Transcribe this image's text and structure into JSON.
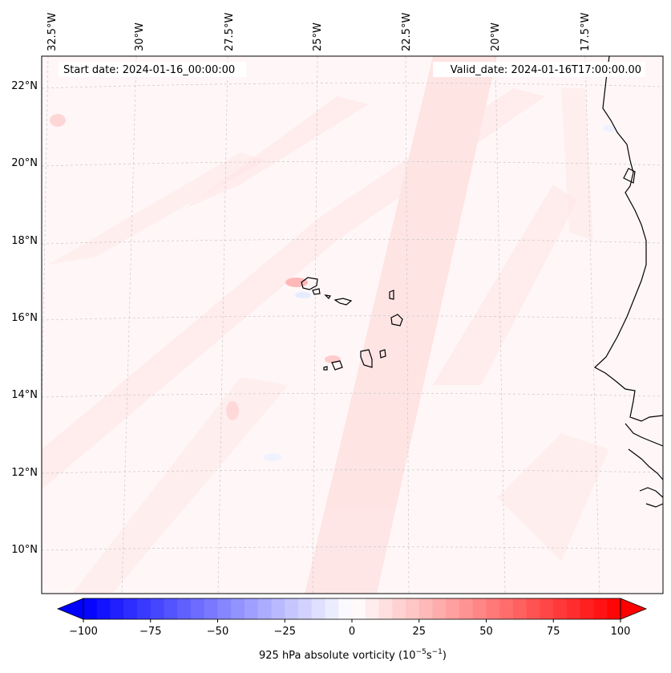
{
  "map": {
    "start_label": "Start date: 2024-01-16_00:00:00",
    "valid_label": "Valid_date: 2024-01-16T17:00:00.00",
    "lon_labels": [
      "32.5°W",
      "30°W",
      "27.5°W",
      "25°W",
      "22.5°W",
      "20°W",
      "17.5°W"
    ],
    "lat_labels": [
      "22°N",
      "20°N",
      "18°N",
      "16°N",
      "14°N",
      "12°N",
      "10°N"
    ],
    "colorbar": {
      "label_prefix": "925 hPa absolute vorticity (10",
      "label_exp1": "−5",
      "label_mid": "s",
      "label_exp2": "−1",
      "label_suffix": ")",
      "ticks": [
        "−100",
        "−75",
        "−50",
        "−25",
        "0",
        "25",
        "50",
        "75",
        "100"
      ],
      "min": -100,
      "max": 100,
      "levels": 40,
      "colors": {
        "negative": "#0000ff",
        "zero": "#ffffff",
        "positive": "#ff0000"
      }
    }
  }
}
